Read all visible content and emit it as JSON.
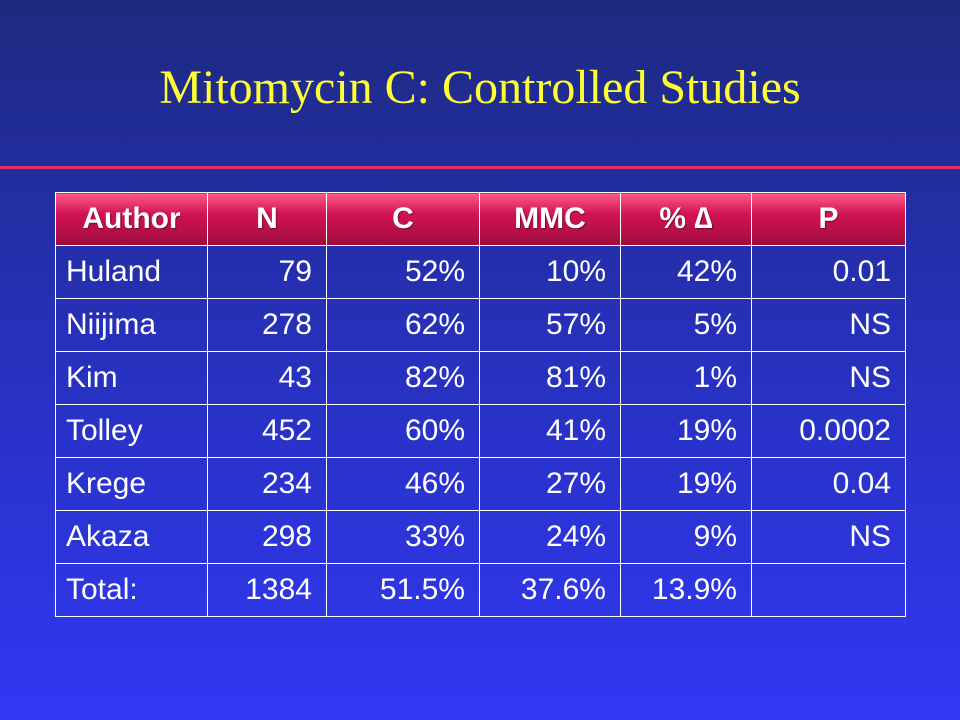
{
  "slide": {
    "title": "Mitomycin C: Controlled Studies",
    "colors": {
      "background": "#2a32c8",
      "title": "#ffff33",
      "rule": "#e0306a",
      "header": "#d11352"
    }
  },
  "table": {
    "headers": [
      "Author",
      "N",
      "C",
      "MMC",
      "% ∆",
      "P"
    ],
    "rows": [
      [
        "Huland",
        "79",
        "52%",
        "10%",
        "42%",
        "0.01"
      ],
      [
        "Niijima",
        "278",
        "62%",
        "57%",
        "5%",
        "NS"
      ],
      [
        "Kim",
        "43",
        "82%",
        "81%",
        "1%",
        "NS"
      ],
      [
        "Tolley",
        "452",
        "60%",
        "41%",
        "19%",
        "0.0002"
      ],
      [
        "Krege",
        "234",
        "46%",
        "27%",
        "19%",
        "0.04"
      ],
      [
        "Akaza",
        "298",
        "33%",
        "24%",
        "9%",
        "NS"
      ],
      [
        "Total:",
        "1384",
        "51.5%",
        "37.6%",
        "13.9%",
        ""
      ]
    ]
  }
}
